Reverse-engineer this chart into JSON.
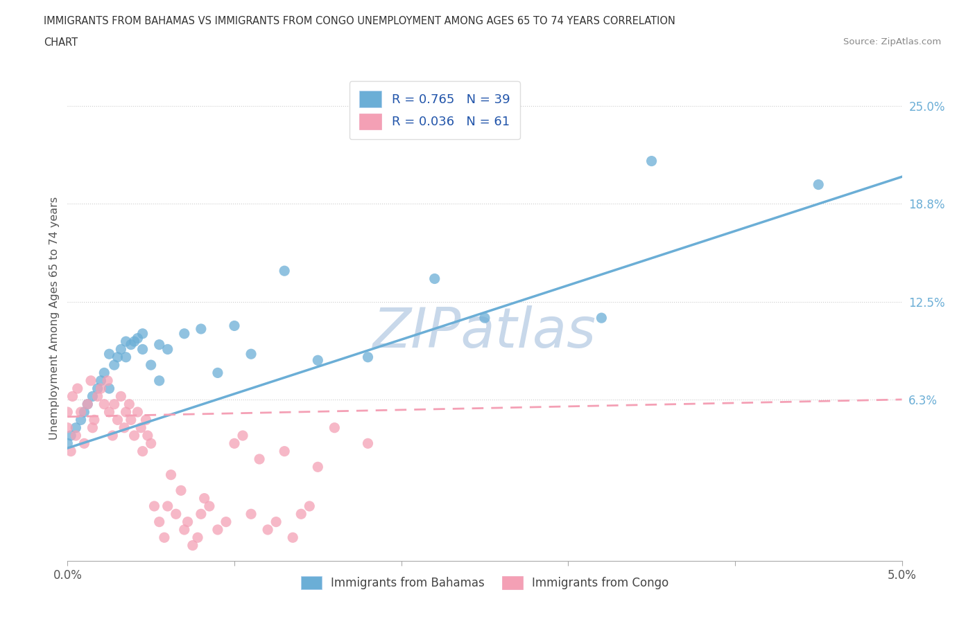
{
  "title_line1": "IMMIGRANTS FROM BAHAMAS VS IMMIGRANTS FROM CONGO UNEMPLOYMENT AMONG AGES 65 TO 74 YEARS CORRELATION",
  "title_line2": "CHART",
  "source": "Source: ZipAtlas.com",
  "ylabel": "Unemployment Among Ages 65 to 74 years",
  "x_min": 0.0,
  "x_max": 5.0,
  "y_min": -4.0,
  "y_max": 27.0,
  "x_ticks": [
    0.0,
    1.0,
    2.0,
    3.0,
    4.0,
    5.0
  ],
  "x_tick_labels": [
    "0.0%",
    "",
    "",
    "",
    "",
    "5.0%"
  ],
  "y_tick_positions": [
    6.3,
    12.5,
    18.8,
    25.0
  ],
  "y_tick_labels": [
    "6.3%",
    "12.5%",
    "18.8%",
    "25.0%"
  ],
  "bahamas_color": "#6baed6",
  "congo_color": "#f4a0b5",
  "bahamas_R": 0.765,
  "bahamas_N": 39,
  "congo_R": 0.036,
  "congo_N": 61,
  "watermark": "ZIPatlas",
  "watermark_color": "#c8d8ea",
  "bahamas_scatter_x": [
    0.0,
    0.02,
    0.05,
    0.08,
    0.1,
    0.12,
    0.15,
    0.18,
    0.2,
    0.22,
    0.25,
    0.28,
    0.3,
    0.32,
    0.35,
    0.38,
    0.4,
    0.42,
    0.45,
    0.5,
    0.55,
    0.6,
    0.7,
    0.8,
    0.9,
    1.0,
    1.1,
    1.3,
    1.5,
    1.8,
    2.2,
    2.5,
    3.5,
    4.5,
    0.25,
    0.35,
    0.45,
    0.55,
    3.2
  ],
  "bahamas_scatter_y": [
    3.5,
    4.0,
    4.5,
    5.0,
    5.5,
    6.0,
    6.5,
    7.0,
    7.5,
    8.0,
    7.0,
    8.5,
    9.0,
    9.5,
    9.0,
    9.8,
    10.0,
    10.2,
    10.5,
    8.5,
    7.5,
    9.5,
    10.5,
    10.8,
    8.0,
    11.0,
    9.2,
    14.5,
    8.8,
    9.0,
    14.0,
    11.5,
    21.5,
    20.0,
    9.2,
    10.0,
    9.5,
    9.8,
    11.5
  ],
  "congo_scatter_x": [
    0.0,
    0.0,
    0.02,
    0.03,
    0.05,
    0.06,
    0.08,
    0.1,
    0.12,
    0.14,
    0.15,
    0.16,
    0.18,
    0.2,
    0.22,
    0.24,
    0.25,
    0.27,
    0.28,
    0.3,
    0.32,
    0.34,
    0.35,
    0.37,
    0.38,
    0.4,
    0.42,
    0.44,
    0.45,
    0.47,
    0.48,
    0.5,
    0.52,
    0.55,
    0.58,
    0.6,
    0.62,
    0.65,
    0.68,
    0.7,
    0.72,
    0.75,
    0.78,
    0.8,
    0.82,
    0.85,
    0.9,
    0.95,
    1.0,
    1.05,
    1.1,
    1.15,
    1.2,
    1.25,
    1.3,
    1.35,
    1.4,
    1.45,
    1.5,
    1.6,
    1.8
  ],
  "congo_scatter_y": [
    4.5,
    5.5,
    3.0,
    6.5,
    4.0,
    7.0,
    5.5,
    3.5,
    6.0,
    7.5,
    4.5,
    5.0,
    6.5,
    7.0,
    6.0,
    7.5,
    5.5,
    4.0,
    6.0,
    5.0,
    6.5,
    4.5,
    5.5,
    6.0,
    5.0,
    4.0,
    5.5,
    4.5,
    3.0,
    5.0,
    4.0,
    3.5,
    -0.5,
    -1.5,
    -2.5,
    -0.5,
    1.5,
    -1.0,
    0.5,
    -2.0,
    -1.5,
    -3.0,
    -2.5,
    -1.0,
    0.0,
    -0.5,
    -2.0,
    -1.5,
    3.5,
    4.0,
    -1.0,
    2.5,
    -2.0,
    -1.5,
    3.0,
    -2.5,
    -1.0,
    -0.5,
    2.0,
    4.5,
    3.5
  ],
  "bahamas_trendline_x": [
    0.0,
    5.0
  ],
  "bahamas_trendline_y": [
    3.2,
    20.5
  ],
  "congo_trendline_x": [
    0.0,
    5.0
  ],
  "congo_trendline_y": [
    5.2,
    6.3
  ],
  "legend_label_bahamas": "R = 0.765   N = 39",
  "legend_label_congo": "R = 0.036   N = 61",
  "legend_label_bahamas_bottom": "Immigrants from Bahamas",
  "legend_label_congo_bottom": "Immigrants from Congo"
}
